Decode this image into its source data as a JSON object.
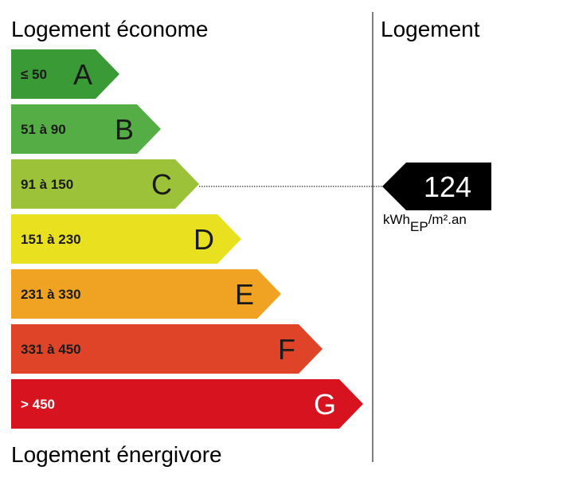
{
  "header": {
    "top_left": "Logement économe",
    "bottom_left": "Logement énergivore",
    "right": "Logement"
  },
  "classes": [
    {
      "range": "≤ 50",
      "letter": "A",
      "color": "#3a9a36"
    },
    {
      "range": "51 à 90",
      "letter": "B",
      "color": "#55ae45"
    },
    {
      "range": "91 à 150",
      "letter": "C",
      "color": "#9cc23a"
    },
    {
      "range": "151 à 230",
      "letter": "D",
      "color": "#e9e11f"
    },
    {
      "range": "231 à 330",
      "letter": "E",
      "color": "#f0a322"
    },
    {
      "range": "331 à 450",
      "letter": "F",
      "color": "#df4429"
    },
    {
      "range": "> 450",
      "letter": "G",
      "color": "#d6131f"
    }
  ],
  "rating": {
    "value": "124",
    "unit": "kWh",
    "unit_sub": "EP",
    "unit_suffix": "/m².an"
  }
}
